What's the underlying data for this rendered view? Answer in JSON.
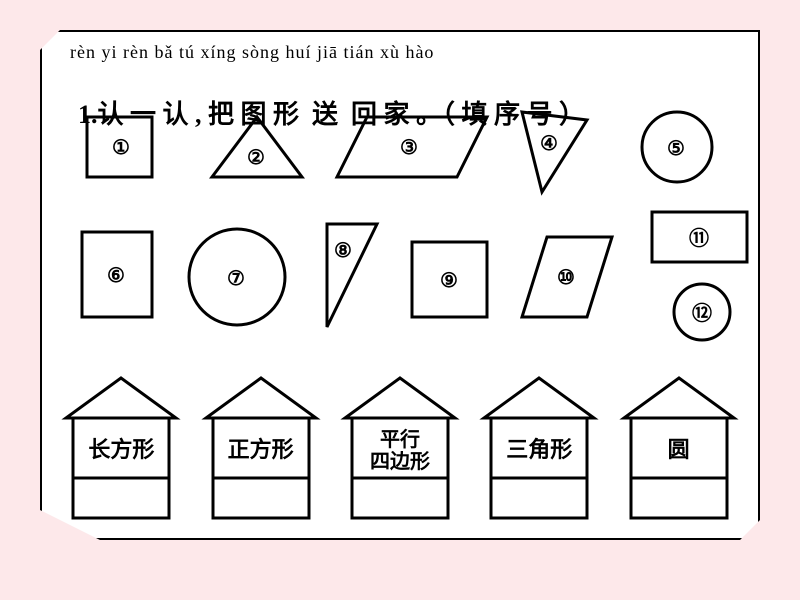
{
  "title": {
    "pinyin": "rèn  yi  rèn     bǎ   tú  xíng  sòng  huí   jiā            tián  xù  hào",
    "number": "1.",
    "text": "认 一 认 , 把 图 形  送  回 家 。（ 填 序 号 ）"
  },
  "shapes": {
    "stroke": "#000000",
    "strokeWidth": 3,
    "labels": [
      "①",
      "②",
      "③",
      "④",
      "⑤",
      "⑥",
      "⑦",
      "⑧",
      "⑨",
      "⑩",
      "⑪",
      "⑫"
    ]
  },
  "houses": [
    {
      "label": "长方形"
    },
    {
      "label": "正方形"
    },
    {
      "label": "平行\n四边形",
      "small": true
    },
    {
      "label": "三角形"
    },
    {
      "label": "圆"
    }
  ],
  "colors": {
    "pageBg": "#ffffff",
    "outerBg": "#fde8ea",
    "lines": "#000000"
  }
}
